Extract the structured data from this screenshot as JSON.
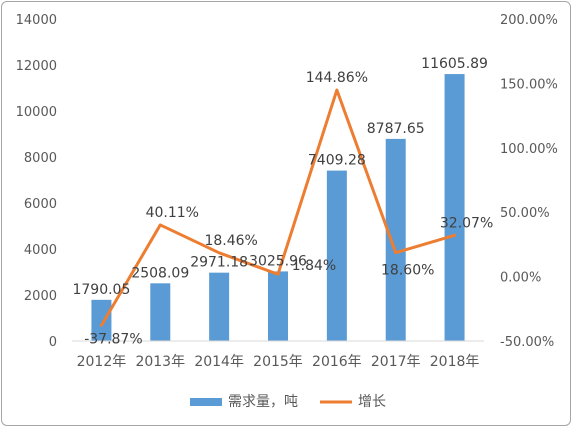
{
  "chart_data": {
    "type": "bar",
    "categories": [
      "2012年",
      "2013年",
      "2014年",
      "2015年",
      "2016年",
      "2017年",
      "2018年"
    ],
    "series": [
      {
        "name": "需求量，吨",
        "type": "bar",
        "axis": "left",
        "values": [
          1790.05,
          2508.09,
          2971.18,
          3025.96,
          7409.28,
          8787.65,
          11605.89
        ],
        "labels": [
          "1790.05",
          "2508.09",
          "2971.18",
          "3025.96",
          "7409.28",
          "8787.65",
          "11605.89"
        ],
        "color": "#5b9bd5"
      },
      {
        "name": "增长",
        "type": "line",
        "axis": "right",
        "values": [
          -37.87,
          40.11,
          18.46,
          1.84,
          144.86,
          18.6,
          32.07
        ],
        "labels": [
          "-37.87%",
          "40.11%",
          "18.46%",
          "1.84%",
          "144.86%",
          "18.60%",
          "32.07%"
        ],
        "color": "#ed7d31"
      }
    ],
    "left_axis": {
      "ylim": [
        0,
        14000
      ],
      "ticks": [
        "0",
        "2000",
        "4000",
        "6000",
        "8000",
        "10000",
        "12000",
        "14000"
      ]
    },
    "right_axis": {
      "ylim": [
        -50,
        200
      ],
      "ticks": [
        "-50.00%",
        "0.00%",
        "50.00%",
        "100.00%",
        "150.00%",
        "200.00%"
      ]
    },
    "grid": false,
    "legend_position": "bottom"
  }
}
